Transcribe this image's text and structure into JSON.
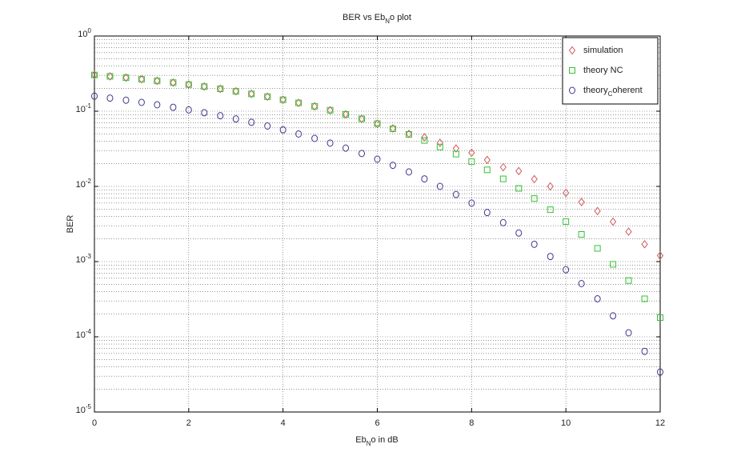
{
  "chart_data": {
    "type": "scatter",
    "title": "BER vs Eb_No plot",
    "xlabel": "Eb_No in dB",
    "ylabel": "BER",
    "x": [
      0,
      0.33,
      0.67,
      1,
      1.33,
      1.67,
      2,
      2.33,
      2.67,
      3,
      3.33,
      3.67,
      4,
      4.33,
      4.67,
      5,
      5.33,
      5.67,
      6,
      6.33,
      6.67,
      7,
      7.33,
      7.67,
      8,
      8.33,
      8.67,
      9,
      9.33,
      9.67,
      10,
      10.33,
      10.67,
      11,
      11.33,
      11.67,
      12
    ],
    "series": [
      {
        "name": "simulation",
        "color": "#d05a5a",
        "marker": "diamond",
        "values": [
          0.303,
          0.291,
          0.279,
          0.266,
          0.253,
          0.24,
          0.226,
          0.2125,
          0.1985,
          0.184,
          0.17,
          0.156,
          0.142,
          0.129,
          0.116,
          0.103,
          0.0907,
          0.0792,
          0.0683,
          0.059,
          0.05,
          0.045,
          0.038,
          0.032,
          0.028,
          0.0225,
          0.018,
          0.016,
          0.0125,
          0.01,
          0.0082,
          0.0062,
          0.0047,
          0.0034,
          0.0025,
          0.0017,
          0.0012
        ]
      },
      {
        "name": "theory NC",
        "color": "#33c233",
        "marker": "square",
        "values": [
          0.303,
          0.291,
          0.279,
          0.266,
          0.253,
          0.24,
          0.226,
          0.2125,
          0.1985,
          0.184,
          0.17,
          0.156,
          0.142,
          0.129,
          0.116,
          0.103,
          0.0907,
          0.0792,
          0.0683,
          0.0583,
          0.0491,
          0.0408,
          0.0334,
          0.0269,
          0.0213,
          0.0166,
          0.0126,
          0.0094,
          0.0069,
          0.0049,
          0.0034,
          0.0023,
          0.0015,
          0.00092,
          0.00056,
          0.00032,
          0.00018
        ]
      },
      {
        "name": "theory_Coherent",
        "color": "#3a3a8c",
        "marker": "circle",
        "values": [
          0.1587,
          0.1494,
          0.1401,
          0.1309,
          0.1218,
          0.1128,
          0.104,
          0.0954,
          0.0871,
          0.0789,
          0.0711,
          0.0636,
          0.0565,
          0.0498,
          0.0435,
          0.0377,
          0.0323,
          0.0274,
          0.023,
          0.0191,
          0.0156,
          0.0126,
          0.01,
          0.0078,
          0.006,
          0.0045,
          0.0033,
          0.0024,
          0.0017,
          0.00117,
          0.00078,
          0.00051,
          0.00032,
          0.00019,
          0.000113,
          6.4e-05,
          3.4e-05
        ]
      }
    ],
    "xlim": [
      0,
      12
    ],
    "xticks": [
      0,
      2,
      4,
      6,
      8,
      10,
      12
    ],
    "ylim": [
      1e-05,
      1
    ],
    "yticks": [
      {
        "value": 1e-05,
        "label": "10^-5"
      },
      {
        "value": 0.0001,
        "label": "10^-4"
      },
      {
        "value": 0.001,
        "label": "10^-3"
      },
      {
        "value": 0.01,
        "label": "10^-2"
      },
      {
        "value": 0.1,
        "label": "10^-1"
      },
      {
        "value": 1,
        "label": "10^0"
      }
    ],
    "yscale": "log",
    "grid": true,
    "minor_grid": true,
    "legend": "upper right"
  }
}
